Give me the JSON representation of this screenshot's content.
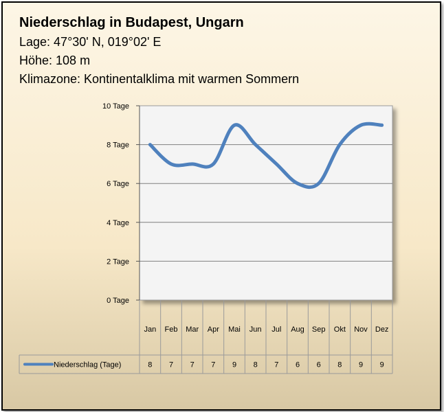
{
  "header": {
    "title": "Niederschlag in Budapest, Ungarn",
    "lage": "Lage: 47°30' N, 019°02' E",
    "hoehe": "Höhe: 108 m",
    "klimazone": "Klimazone: Kontinentalklima mit warmen Sommern"
  },
  "colors": {
    "series": "#4f81bd",
    "plot_bg": "#f4f4f4",
    "grid": "#7f7f7f"
  },
  "chart_data": {
    "type": "line",
    "title": "Niederschlag in Budapest, Ungarn",
    "categories": [
      "Jan",
      "Feb",
      "Mar",
      "Apr",
      "Mai",
      "Jun",
      "Jul",
      "Aug",
      "Sep",
      "Okt",
      "Nov",
      "Dez"
    ],
    "series": [
      {
        "name": "Niederschlag (Tage)",
        "values": [
          8,
          7,
          7,
          7,
          9,
          8,
          7,
          6,
          6,
          8,
          9,
          9
        ],
        "value_labels": [
          "8",
          "7",
          "7",
          "7",
          "9",
          "8",
          "7",
          "6",
          "6",
          "8",
          "9",
          "9"
        ]
      }
    ],
    "ylim": [
      0,
      10
    ],
    "yticks": [
      0,
      2,
      4,
      6,
      8,
      10
    ],
    "ytick_labels": [
      "0 Tage",
      "2 Tage",
      "4 Tage",
      "6 Tage",
      "8 Tage",
      "10 Tage"
    ],
    "xlabel": "",
    "ylabel": "",
    "grid": true,
    "legend": "data-table-bottom"
  }
}
